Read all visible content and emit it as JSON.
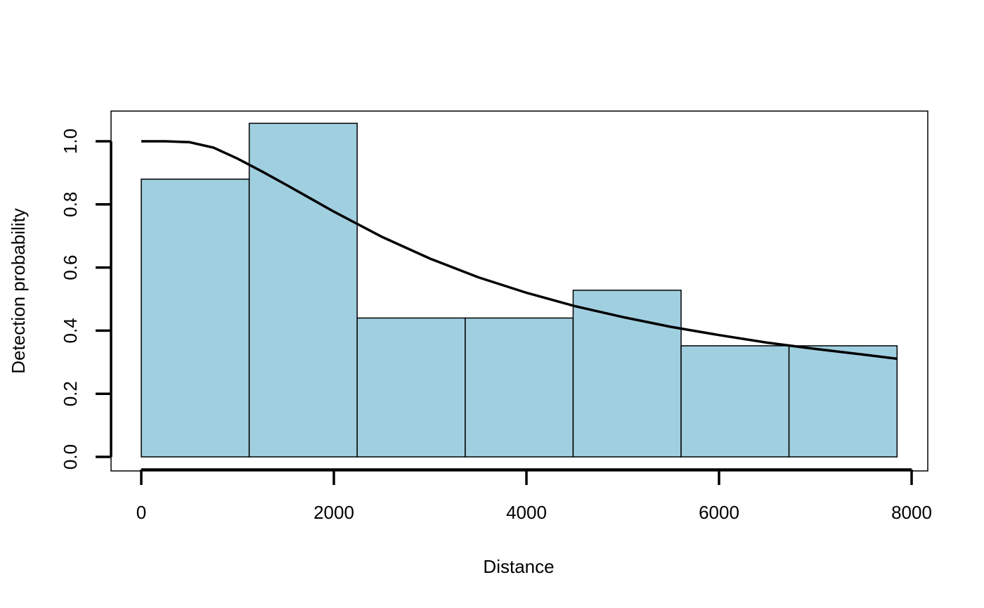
{
  "chart_data": {
    "type": "bar",
    "title": "",
    "xlabel": "Distance",
    "ylabel": "Detection probability",
    "xlim": [
      0,
      8000
    ],
    "ylim": [
      0,
      1.0
    ],
    "x_ticks": [
      0,
      2000,
      4000,
      6000,
      8000
    ],
    "y_ticks": [
      0.0,
      0.2,
      0.4,
      0.6,
      0.8,
      1.0
    ],
    "x_tick_labels": [
      "0",
      "2000",
      "4000",
      "6000",
      "8000"
    ],
    "y_tick_labels": [
      "0.0",
      "0.2",
      "0.4",
      "0.6",
      "0.8",
      "1.0"
    ],
    "bins": [
      {
        "from": 0,
        "to": 1121,
        "value": 0.88
      },
      {
        "from": 1121,
        "to": 2242,
        "value": 1.057
      },
      {
        "from": 2242,
        "to": 3364,
        "value": 0.44
      },
      {
        "from": 3364,
        "to": 4485,
        "value": 0.44
      },
      {
        "from": 4485,
        "to": 5606,
        "value": 0.528
      },
      {
        "from": 5606,
        "to": 6727,
        "value": 0.352
      },
      {
        "from": 6727,
        "to": 7849,
        "value": 0.352
      }
    ],
    "bar_color": "#a0cfe0",
    "curve": {
      "x": [
        0,
        250,
        500,
        750,
        1000,
        1250,
        1500,
        1750,
        2000,
        2500,
        3000,
        3500,
        4000,
        4500,
        5000,
        5500,
        6000,
        6500,
        7000,
        7500,
        7849
      ],
      "y": [
        1.0,
        1.0,
        0.997,
        0.98,
        0.945,
        0.905,
        0.863,
        0.82,
        0.777,
        0.697,
        0.628,
        0.569,
        0.52,
        0.478,
        0.443,
        0.412,
        0.386,
        0.362,
        0.342,
        0.324,
        0.311
      ]
    },
    "grid": false,
    "legend": "none"
  }
}
